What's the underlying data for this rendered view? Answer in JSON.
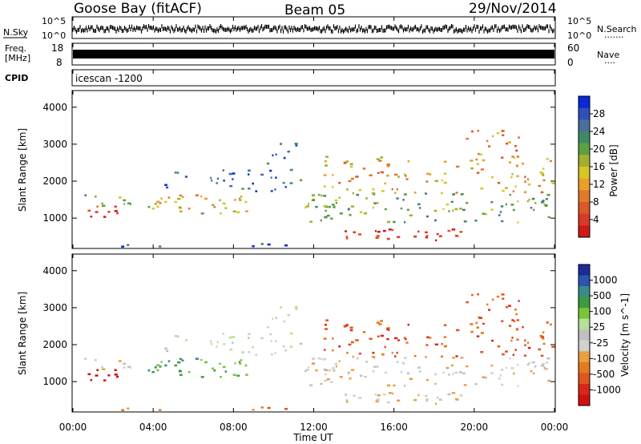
{
  "header": {
    "station": "Goose Bay (fitACF)",
    "beam": "Beam 05",
    "date": "29/Nov/2014"
  },
  "strips": {
    "nsky_label": "N.Sky",
    "nsearch_label": "N.Search",
    "nsearch_dots": "·······",
    "freq_label_1": "Freq.",
    "freq_label_2": "[MHz]",
    "nave_label": "Nave",
    "nave_dots": "····",
    "cpid_label": "CPID",
    "cpid_value": "icescan -1200",
    "noise_ticks_left": [
      "10^5",
      "10^0"
    ],
    "noise_ticks_right": [
      "10^5",
      "10^0"
    ],
    "freq_ticks": [
      "18",
      "8"
    ],
    "nave_ticks": [
      "60",
      "0"
    ]
  },
  "chart_data": [
    {
      "type": "heatmap",
      "title": "Power",
      "ylabel": "Slant Range [km]",
      "ylim": [
        180,
        4450
      ],
      "yticks": [
        "1000",
        "2000",
        "3000",
        "4000"
      ],
      "colorbar": {
        "label": "Power [dB]",
        "ticks": [
          "4",
          "8",
          "12",
          "16",
          "20",
          "24",
          "28"
        ],
        "colors": [
          "#0a28d8",
          "#2f50b6",
          "#4a6f9a",
          "#3f8a66",
          "#5fa040",
          "#a3b030",
          "#d8c628",
          "#e8a028",
          "#e07a2a",
          "#d85a28",
          "#d83a28",
          "#d01818"
        ]
      }
    },
    {
      "type": "heatmap",
      "title": "Velocity",
      "ylabel": "Slant Range [km]",
      "ylim": [
        180,
        4450
      ],
      "yticks": [
        "1000",
        "2000",
        "3000",
        "4000"
      ],
      "colorbar": {
        "label": "Velocity [m s^-1]",
        "ticks": [
          "1000",
          "500",
          "100",
          "25",
          "-25",
          "-100",
          "-500",
          "-1000"
        ],
        "colors": [
          "#1c2a9c",
          "#2a56b0",
          "#3a8a8a",
          "#3f9a40",
          "#7ac43a",
          "#b8e098",
          "#c0c0c0",
          "#d0d0d0",
          "#e8a040",
          "#e8781e",
          "#e0561e",
          "#d8281a",
          "#d01010"
        ]
      }
    }
  ],
  "time_axis": {
    "label": "Time UT",
    "ticks": [
      "00:00",
      "04:00",
      "08:00",
      "12:00",
      "16:00",
      "20:00",
      "00:00"
    ]
  }
}
